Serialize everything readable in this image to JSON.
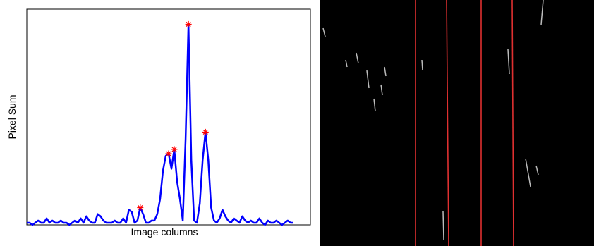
{
  "chart_data": {
    "type": "line",
    "xlabel": "Image columns",
    "ylabel": "Pixel Sum",
    "color": "#0000ff",
    "xlim": [
      0,
      100
    ],
    "ylim": [
      0,
      100
    ],
    "x": [
      0,
      1,
      2,
      3,
      4,
      5,
      6,
      7,
      8,
      9,
      10,
      11,
      12,
      13,
      14,
      15,
      16,
      17,
      18,
      19,
      20,
      21,
      22,
      23,
      24,
      25,
      26,
      27,
      28,
      29,
      30,
      31,
      32,
      33,
      34,
      35,
      36,
      37,
      38,
      39,
      40,
      41,
      42,
      43,
      44,
      45,
      46,
      47,
      48,
      49,
      50,
      51,
      52,
      53,
      54,
      55,
      56,
      57,
      58,
      59,
      60,
      61,
      62,
      63,
      64,
      65,
      66,
      67,
      68,
      69,
      70,
      71,
      72,
      73,
      74,
      75,
      76,
      77,
      78,
      79,
      80,
      81,
      82,
      83,
      84,
      85,
      86,
      87,
      88,
      89,
      90,
      91,
      92,
      93,
      94
    ],
    "values": [
      1,
      1,
      0,
      1,
      2,
      1,
      1,
      3,
      1,
      2,
      1,
      1,
      2,
      1,
      1,
      0,
      1,
      2,
      1,
      3,
      1,
      4,
      2,
      1,
      1,
      5,
      4,
      2,
      1,
      1,
      1,
      2,
      1,
      1,
      3,
      1,
      7,
      6,
      1,
      2,
      8,
      5,
      1,
      1,
      2,
      2,
      5,
      12,
      25,
      32,
      33,
      26,
      35,
      20,
      12,
      2,
      40,
      93,
      30,
      2,
      1,
      10,
      30,
      43,
      30,
      8,
      2,
      1,
      3,
      7,
      4,
      2,
      1,
      3,
      2,
      1,
      4,
      2,
      1,
      2,
      1,
      1,
      3,
      1,
      0,
      2,
      1,
      1,
      2,
      1,
      0,
      1,
      2,
      1,
      1
    ],
    "peaks": {
      "color": "#ff0000",
      "x": [
        40,
        50,
        52,
        57,
        63
      ],
      "values": [
        8,
        33,
        35,
        93,
        43
      ]
    }
  }
}
